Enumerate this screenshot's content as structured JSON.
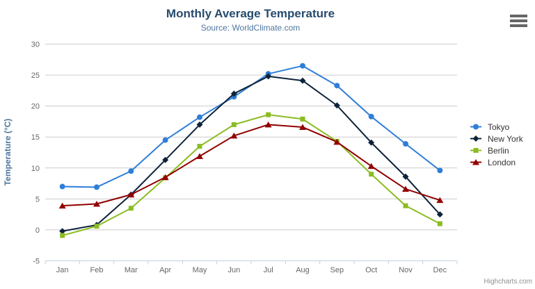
{
  "chart": {
    "title": "Monthly Average Temperature",
    "subtitle": "Source: WorldClimate.com",
    "credits": "Highcharts.com",
    "menu_icon": "hamburger-icon"
  },
  "chart_data": {
    "type": "line",
    "title": "Monthly Average Temperature",
    "subtitle": "Source: WorldClimate.com",
    "categories": [
      "Jan",
      "Feb",
      "Mar",
      "Apr",
      "May",
      "Jun",
      "Jul",
      "Aug",
      "Sep",
      "Oct",
      "Nov",
      "Dec"
    ],
    "series": [
      {
        "name": "Tokyo",
        "color": "#2f7ed8",
        "symbol": "circle",
        "values": [
          7.0,
          6.9,
          9.5,
          14.5,
          18.2,
          21.5,
          25.2,
          26.5,
          23.3,
          18.3,
          13.9,
          9.6
        ]
      },
      {
        "name": "New York",
        "color": "#0d233a",
        "symbol": "diamond",
        "values": [
          -0.2,
          0.8,
          5.7,
          11.3,
          17.0,
          22.0,
          24.8,
          24.1,
          20.1,
          14.1,
          8.6,
          2.5
        ]
      },
      {
        "name": "Berlin",
        "color": "#8bbc21",
        "symbol": "square",
        "values": [
          -0.9,
          0.6,
          3.5,
          8.4,
          13.5,
          17.0,
          18.6,
          17.9,
          14.3,
          9.0,
          3.9,
          1.0
        ]
      },
      {
        "name": "London",
        "color": "#910000",
        "symbol": "triangle",
        "values": [
          3.9,
          4.2,
          5.7,
          8.5,
          11.9,
          15.2,
          17.0,
          16.6,
          14.2,
          10.3,
          6.6,
          4.8
        ]
      }
    ],
    "xlabel": "",
    "ylabel": "Temperature (°C)",
    "ylim": [
      -5,
      30
    ],
    "y_ticks": [
      -5,
      0,
      5,
      10,
      15,
      20,
      25,
      30
    ],
    "grid": true,
    "legend_position": "right"
  },
  "colors": {
    "title": "#274b6d",
    "subtitle": "#4d759e",
    "axis_title": "#4d759e",
    "tick_label": "#666666",
    "grid": "#cccccc",
    "axis_line": "#c0d0e0",
    "legend_text": "#333333",
    "credits": "#909090",
    "background": "#ffffff"
  }
}
